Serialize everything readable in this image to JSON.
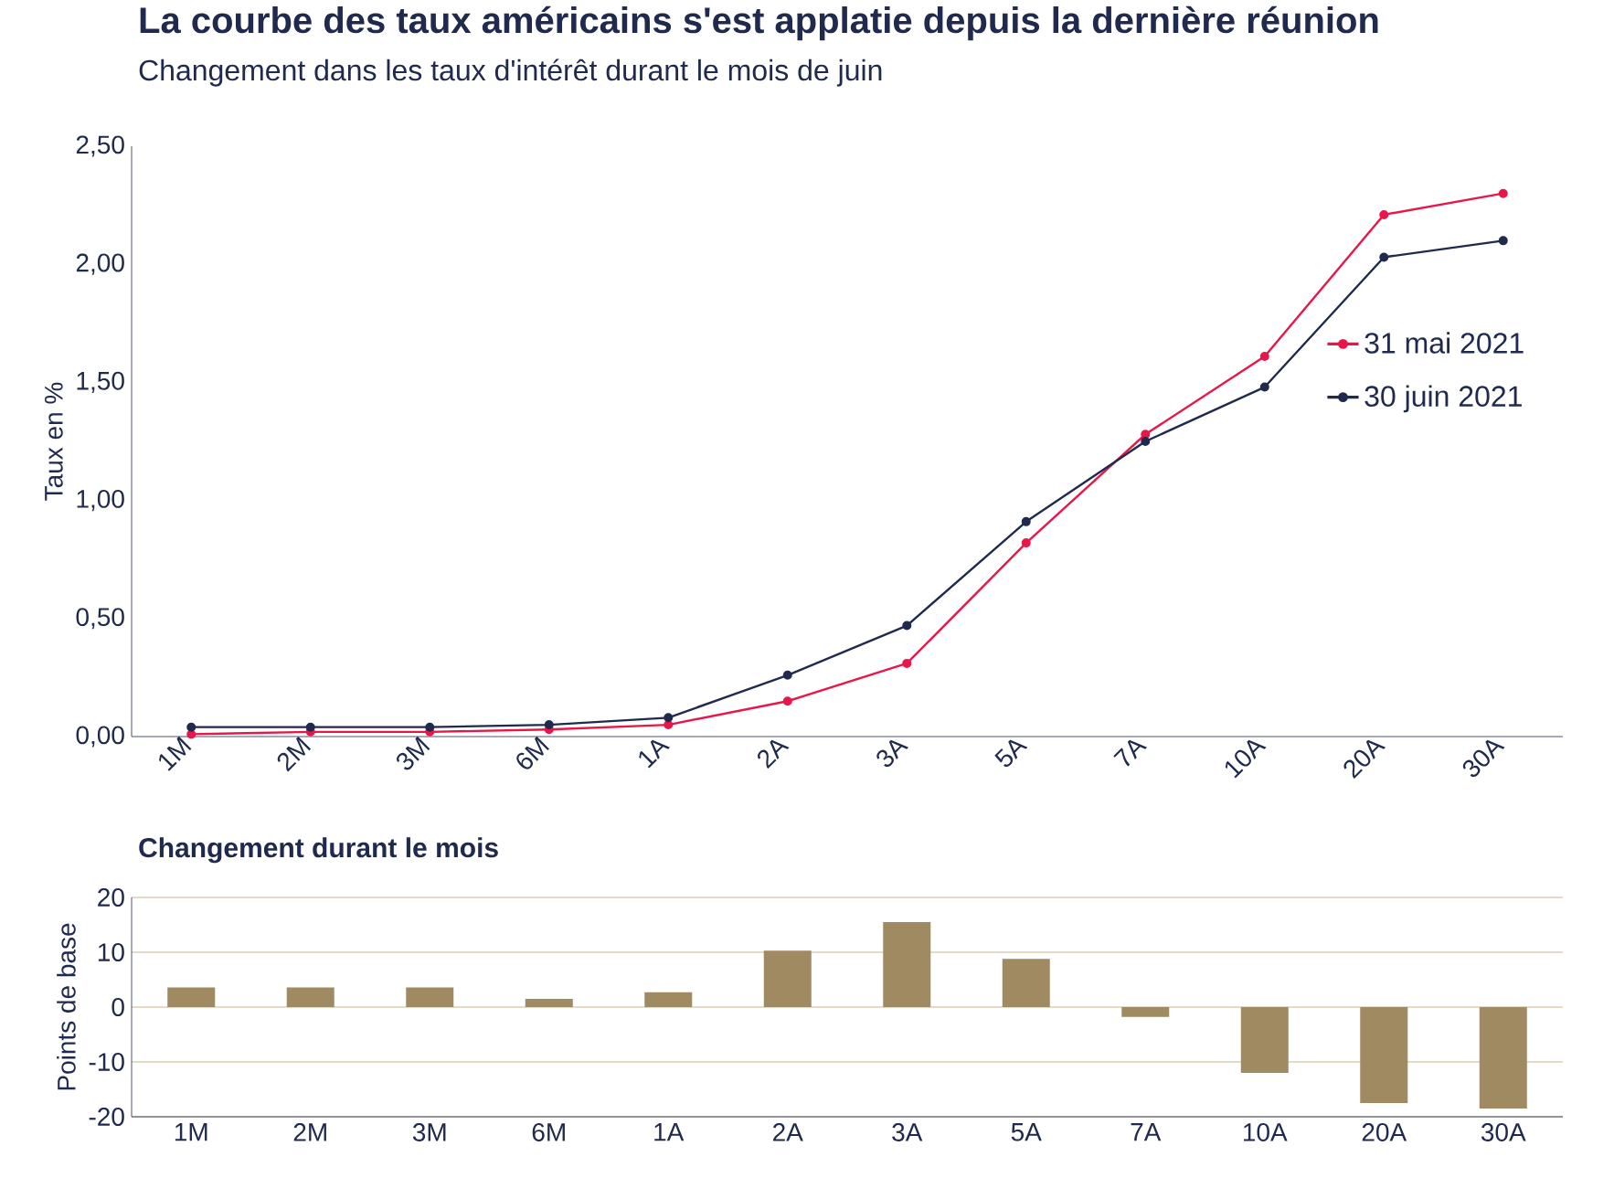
{
  "chart_data": [
    {
      "type": "line",
      "title": "La courbe des taux américains s'est applatie depuis la dernière réunion",
      "subtitle": "Changement dans les taux d'intérêt durant le mois de juin",
      "ylabel": "Taux en %",
      "categories": [
        "1M",
        "2M",
        "3M",
        "6M",
        "1A",
        "2A",
        "3A",
        "5A",
        "7A",
        "10A",
        "20A",
        "30A"
      ],
      "ylim": [
        0,
        2.5
      ],
      "yticks": [
        {
          "value": 0,
          "label": "0,00"
        },
        {
          "value": 0.5,
          "label": "0,50"
        },
        {
          "value": 1,
          "label": "1,00"
        },
        {
          "value": 1.5,
          "label": "1,50"
        },
        {
          "value": 2,
          "label": "2,00"
        },
        {
          "value": 2.5,
          "label": "2,50"
        }
      ],
      "series": [
        {
          "name": "31 mai 2021",
          "color": "#e8174a",
          "values": [
            0.01,
            0.02,
            0.02,
            0.03,
            0.05,
            0.15,
            0.31,
            0.82,
            1.28,
            1.61,
            2.21,
            2.3
          ]
        },
        {
          "name": "30 juin 2021",
          "color": "#1f2a4e",
          "values": [
            0.04,
            0.04,
            0.04,
            0.05,
            0.08,
            0.26,
            0.47,
            0.91,
            1.25,
            1.48,
            2.03,
            2.1
          ]
        }
      ],
      "marker": "circle",
      "line_style": "solid",
      "legend": "right"
    },
    {
      "type": "bar",
      "title": "Changement durant le mois",
      "ylabel": "Points de base",
      "categories": [
        "1M",
        "2M",
        "3M",
        "6M",
        "1A",
        "2A",
        "3A",
        "5A",
        "7A",
        "10A",
        "20A",
        "30A"
      ],
      "ylim": [
        -20,
        20
      ],
      "yticks": [
        -20,
        -10,
        0,
        10,
        20
      ],
      "values": [
        3.6,
        3.6,
        3.6,
        1.5,
        2.7,
        10.3,
        15.5,
        8.8,
        -1.8,
        -12,
        -17.5,
        -18.5
      ],
      "color": "#a08a62",
      "grid": "y"
    }
  ]
}
